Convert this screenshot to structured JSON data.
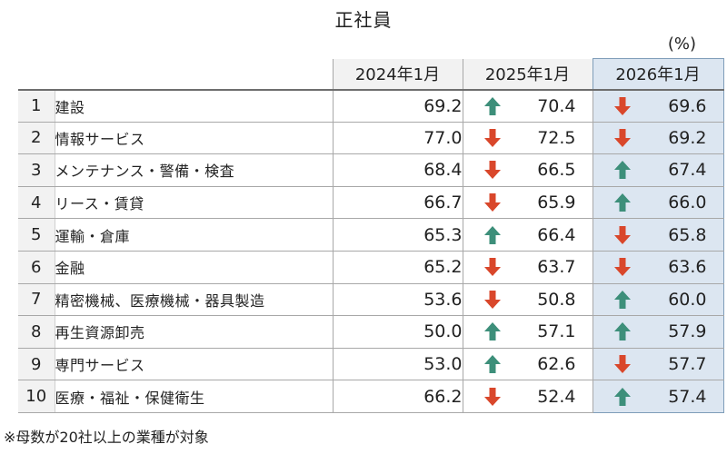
{
  "title": "正社員",
  "unit": "(%)",
  "columns": [
    "2024年1月",
    "2025年1月",
    "2026年1月"
  ],
  "colors": {
    "up": "#3d8f7a",
    "down": "#d9472b",
    "highlight": "#dce6f1"
  },
  "rows": [
    {
      "rank": "1",
      "industry": "建設",
      "v2024": "69.2",
      "v2025": "70.4",
      "a2025": "up",
      "v2026": "69.6",
      "a2026": "down"
    },
    {
      "rank": "2",
      "industry": "情報サービス",
      "v2024": "77.0",
      "v2025": "72.5",
      "a2025": "down",
      "v2026": "69.2",
      "a2026": "down"
    },
    {
      "rank": "3",
      "industry": "メンテナンス・警備・検査",
      "v2024": "68.4",
      "v2025": "66.5",
      "a2025": "down",
      "v2026": "67.4",
      "a2026": "up"
    },
    {
      "rank": "4",
      "industry": "リース・賃貸",
      "v2024": "66.7",
      "v2025": "65.9",
      "a2025": "down",
      "v2026": "66.0",
      "a2026": "up"
    },
    {
      "rank": "5",
      "industry": "運輸・倉庫",
      "v2024": "65.3",
      "v2025": "66.4",
      "a2025": "up",
      "v2026": "65.8",
      "a2026": "down"
    },
    {
      "rank": "6",
      "industry": "金融",
      "v2024": "65.2",
      "v2025": "63.7",
      "a2025": "down",
      "v2026": "63.6",
      "a2026": "down"
    },
    {
      "rank": "7",
      "industry": "精密機械、医療機械・器具製造",
      "v2024": "53.6",
      "v2025": "50.8",
      "a2025": "down",
      "v2026": "60.0",
      "a2026": "up"
    },
    {
      "rank": "8",
      "industry": "再生資源卸売",
      "v2024": "50.0",
      "v2025": "57.1",
      "a2025": "up",
      "v2026": "57.9",
      "a2026": "up"
    },
    {
      "rank": "9",
      "industry": "専門サービス",
      "v2024": "53.0",
      "v2025": "62.6",
      "a2025": "up",
      "v2026": "57.7",
      "a2026": "down"
    },
    {
      "rank": "10",
      "industry": "医療・福祉・保健衛生",
      "v2024": "66.2",
      "v2025": "52.4",
      "a2025": "down",
      "v2026": "57.4",
      "a2026": "up"
    }
  ],
  "footnote": "※母数が20社以上の業種が対象"
}
